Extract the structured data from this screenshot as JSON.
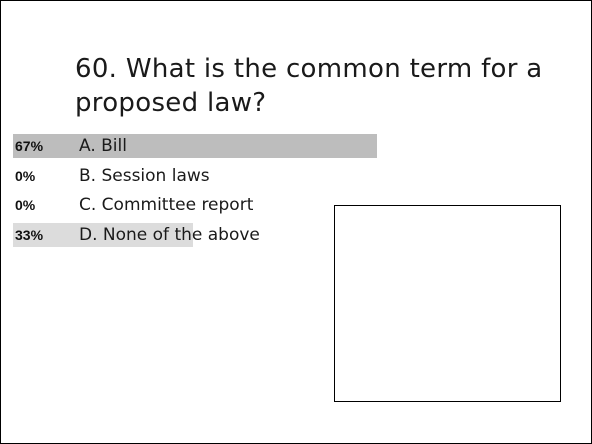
{
  "question": {
    "text": "60.  What is the common term for a proposed law?"
  },
  "answers": [
    {
      "percent_label": "67%",
      "percent": 67,
      "text": "A.  Bill"
    },
    {
      "percent_label": "0%",
      "percent": 0,
      "text": "B.  Session laws"
    },
    {
      "percent_label": "0%",
      "percent": 0,
      "text": "C.  Committee report"
    },
    {
      "percent_label": "33%",
      "percent": 33,
      "text": "D.  None of the above"
    }
  ],
  "colors": {
    "bar_leading": "#bdbdbd",
    "bar_other": "#dcdcdc"
  }
}
